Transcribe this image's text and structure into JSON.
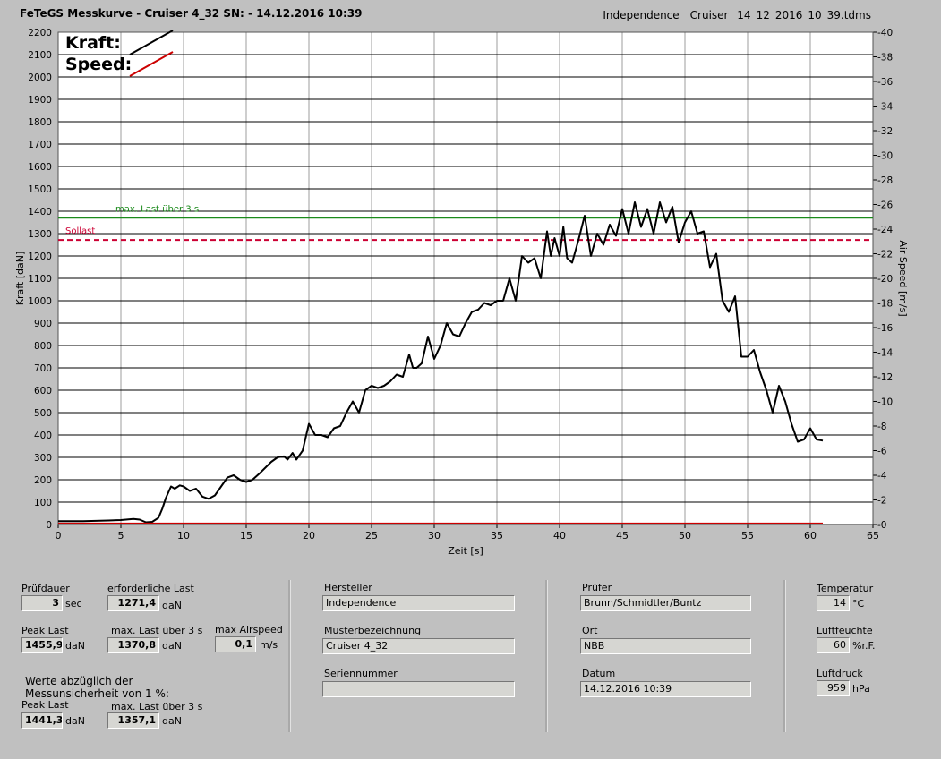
{
  "header": {
    "title": "FeTeGS Messkurve - Cruiser 4_32  SN:  - 14.12.2016 10:39",
    "filename": "Independence__Cruiser _14_12_2016_10_39.tdms"
  },
  "chart_data": {
    "type": "line",
    "xlabel": "Zeit [s]",
    "ylabel": "Kraft [daN]",
    "y2label": "Air Speed [m/s]",
    "xlim": [
      0,
      65
    ],
    "ylim": [
      0,
      2200
    ],
    "y2lim": [
      0,
      40
    ],
    "xticks": [
      0,
      5,
      10,
      15,
      20,
      25,
      30,
      35,
      40,
      45,
      50,
      55,
      60,
      65
    ],
    "yticks": [
      0,
      100,
      200,
      300,
      400,
      500,
      600,
      700,
      800,
      900,
      1000,
      1100,
      1200,
      1300,
      1400,
      1500,
      1600,
      1700,
      1800,
      1900,
      2000,
      2100,
      2200
    ],
    "y2ticks": [
      0,
      2,
      4,
      6,
      8,
      10,
      12,
      14,
      16,
      18,
      20,
      22,
      24,
      26,
      28,
      30,
      32,
      34,
      36,
      38,
      40
    ],
    "grid": true,
    "legend_position": "top-left",
    "legend": [
      {
        "name": "Kraft:",
        "color": "#000000"
      },
      {
        "name": "Speed:",
        "color": "#cc0000"
      }
    ],
    "reference_lines": [
      {
        "label": "max. Last über  3 s",
        "value": 1370.8,
        "color": "#1a8a1a",
        "style": "solid"
      },
      {
        "label": "Sollast",
        "value": 1271.4,
        "color": "#cc0033",
        "style": "dashed"
      }
    ],
    "series": [
      {
        "name": "Kraft:",
        "color": "#000000",
        "x": [
          0,
          2,
          4,
          5,
          6,
          6.5,
          7,
          7.5,
          8,
          8.3,
          8.6,
          9,
          9.3,
          9.7,
          10,
          10.5,
          11,
          11.5,
          12,
          12.5,
          13,
          13.5,
          14,
          14.5,
          15,
          15.5,
          16,
          17,
          17.5,
          18,
          18.3,
          18.7,
          19,
          19.5,
          20,
          20.5,
          21,
          21.5,
          22,
          22.5,
          23,
          23.5,
          24,
          24.5,
          25,
          25.5,
          26,
          26.5,
          27,
          27.5,
          28,
          28.3,
          28.6,
          29,
          29.5,
          30,
          30.5,
          31,
          31.5,
          32,
          32.5,
          33,
          33.5,
          34,
          34.5,
          35,
          35.5,
          36,
          36.5,
          37,
          37.5,
          38,
          38.5,
          39,
          39.3,
          39.6,
          40,
          40.3,
          40.6,
          41,
          41.5,
          42,
          42.5,
          43,
          43.5,
          44,
          44.5,
          45,
          45.5,
          46,
          46.5,
          47,
          47.5,
          48,
          48.5,
          49,
          49.5,
          50,
          50.5,
          51,
          51.5,
          52,
          52.5,
          53,
          53.5,
          54,
          54.5,
          55,
          55.5,
          56,
          56.5,
          57,
          57.5,
          58,
          58.5,
          59,
          59.5,
          60,
          60.5,
          61
        ],
        "y": [
          15,
          15,
          18,
          20,
          25,
          22,
          10,
          12,
          30,
          70,
          120,
          170,
          160,
          175,
          170,
          150,
          160,
          125,
          115,
          130,
          170,
          210,
          220,
          200,
          190,
          200,
          225,
          280,
          300,
          305,
          290,
          320,
          290,
          330,
          450,
          400,
          400,
          390,
          430,
          440,
          500,
          550,
          500,
          600,
          620,
          610,
          620,
          640,
          670,
          660,
          760,
          700,
          700,
          720,
          840,
          740,
          800,
          900,
          850,
          840,
          900,
          950,
          960,
          990,
          980,
          1000,
          1000,
          1100,
          1000,
          1200,
          1170,
          1190,
          1100,
          1310,
          1200,
          1280,
          1200,
          1330,
          1190,
          1170,
          1270,
          1380,
          1200,
          1300,
          1250,
          1340,
          1290,
          1410,
          1300,
          1440,
          1330,
          1410,
          1300,
          1440,
          1350,
          1420,
          1260,
          1350,
          1400,
          1300,
          1310,
          1150,
          1210,
          1000,
          950,
          1020,
          750,
          750,
          780,
          680,
          600,
          500,
          620,
          550,
          450,
          370,
          380,
          430,
          380,
          375
        ]
      },
      {
        "name": "Speed:",
        "color": "#cc0000",
        "x": [
          0,
          61
        ],
        "y": [
          0.1,
          0.1
        ]
      }
    ]
  },
  "panel": {
    "pruefdauer": {
      "label": "Prüfdauer",
      "value": "3",
      "unit": "sec"
    },
    "erf_last": {
      "label": "erforderliche Last",
      "value": "1271,4",
      "unit": "daN"
    },
    "peak_last": {
      "label": "Peak Last",
      "value": "1455,9",
      "unit": "daN"
    },
    "max_last": {
      "label": "max. Last über  3 s",
      "value": "1370,8",
      "unit": "daN"
    },
    "max_airspeed": {
      "label": "max Airspeed",
      "value": "0,1",
      "unit": "m/s"
    },
    "werte_note_1": "Werte abzüglich der",
    "werte_note_2": "Messunsicherheit von 1  %:",
    "peak_last2": {
      "label": "Peak Last",
      "value": "1441,3",
      "unit": "daN"
    },
    "max_last2": {
      "label": "max. Last über  3 s",
      "value": "1357,1",
      "unit": "daN"
    },
    "hersteller": {
      "label": "Hersteller",
      "value": "Independence"
    },
    "musterbezeichnung": {
      "label": "Musterbezeichnung",
      "value": "Cruiser 4_32"
    },
    "seriennummer": {
      "label": "Seriennummer",
      "value": ""
    },
    "pruefer": {
      "label": "Prüfer",
      "value": "Brunn/Schmidtler/Buntz"
    },
    "ort": {
      "label": "Ort",
      "value": "NBB"
    },
    "datum": {
      "label": "Datum",
      "value": "14.12.2016 10:39"
    },
    "temperatur": {
      "label": "Temperatur",
      "value": "14",
      "unit": "°C"
    },
    "luftfeuchte": {
      "label": "Luftfeuchte",
      "value": "60",
      "unit": "%r.F."
    },
    "luftdruck": {
      "label": "Luftdruck",
      "value": "959",
      "unit": "hPa"
    }
  }
}
